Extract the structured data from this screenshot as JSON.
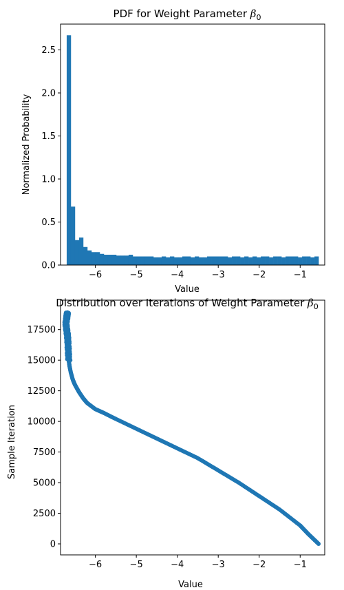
{
  "chart_data": [
    {
      "type": "bar",
      "title": "PDF for Weight Parameter ",
      "title_symbol": "β",
      "title_subscript": "0",
      "xlabel": "Value",
      "ylabel": "Normalized Probability",
      "xlim": [
        -6.85,
        -0.4
      ],
      "ylim": [
        0,
        2.8
      ],
      "xticks": [
        -6,
        -5,
        -4,
        -3,
        -2,
        -1
      ],
      "yticks": [
        0.0,
        0.5,
        1.0,
        1.5,
        2.0,
        2.5
      ],
      "color": "#1f77b4",
      "bin_start": -6.7,
      "bin_end": -0.55,
      "values": [
        2.67,
        0.68,
        0.29,
        0.32,
        0.21,
        0.17,
        0.15,
        0.15,
        0.13,
        0.12,
        0.12,
        0.12,
        0.11,
        0.11,
        0.11,
        0.12,
        0.1,
        0.1,
        0.1,
        0.1,
        0.1,
        0.09,
        0.09,
        0.1,
        0.09,
        0.1,
        0.09,
        0.09,
        0.1,
        0.1,
        0.09,
        0.1,
        0.09,
        0.09,
        0.1,
        0.1,
        0.1,
        0.1,
        0.1,
        0.09,
        0.1,
        0.1,
        0.09,
        0.1,
        0.09,
        0.1,
        0.09,
        0.1,
        0.1,
        0.09,
        0.1,
        0.1,
        0.09,
        0.1,
        0.1,
        0.1,
        0.09,
        0.1,
        0.1,
        0.09,
        0.1
      ]
    },
    {
      "type": "scatter",
      "title": "Distribution over Iterations of Weight Parameter ",
      "title_symbol": "β",
      "title_subscript": "0",
      "xlabel": "Value",
      "ylabel": "Sample Iteration",
      "xlim": [
        -6.85,
        -0.4
      ],
      "ylim": [
        -900,
        19900
      ],
      "xticks": [
        -6,
        -5,
        -4,
        -3,
        -2,
        -1
      ],
      "yticks": [
        0,
        2500,
        5000,
        7500,
        10000,
        12500,
        15000,
        17500
      ],
      "color": "#1f77b4",
      "x": [
        -0.55,
        -0.8,
        -1.0,
        -1.5,
        -2.0,
        -2.5,
        -3.0,
        -3.5,
        -4.0,
        -4.5,
        -5.0,
        -5.5,
        -5.8,
        -6.0,
        -6.2,
        -6.3,
        -6.4,
        -6.5,
        -6.55,
        -6.6,
        -6.63,
        -6.65,
        -6.66,
        -6.67,
        -6.68,
        -6.7,
        -6.72,
        -6.7,
        -6.69,
        -6.68
      ],
      "y": [
        0,
        800,
        1500,
        2800,
        3900,
        5000,
        6000,
        7000,
        7800,
        8600,
        9400,
        10200,
        10700,
        11000,
        11500,
        11900,
        12400,
        13000,
        13400,
        14000,
        14500,
        15000,
        15800,
        16500,
        17000,
        17500,
        18000,
        18400,
        18700,
        18900
      ]
    }
  ]
}
